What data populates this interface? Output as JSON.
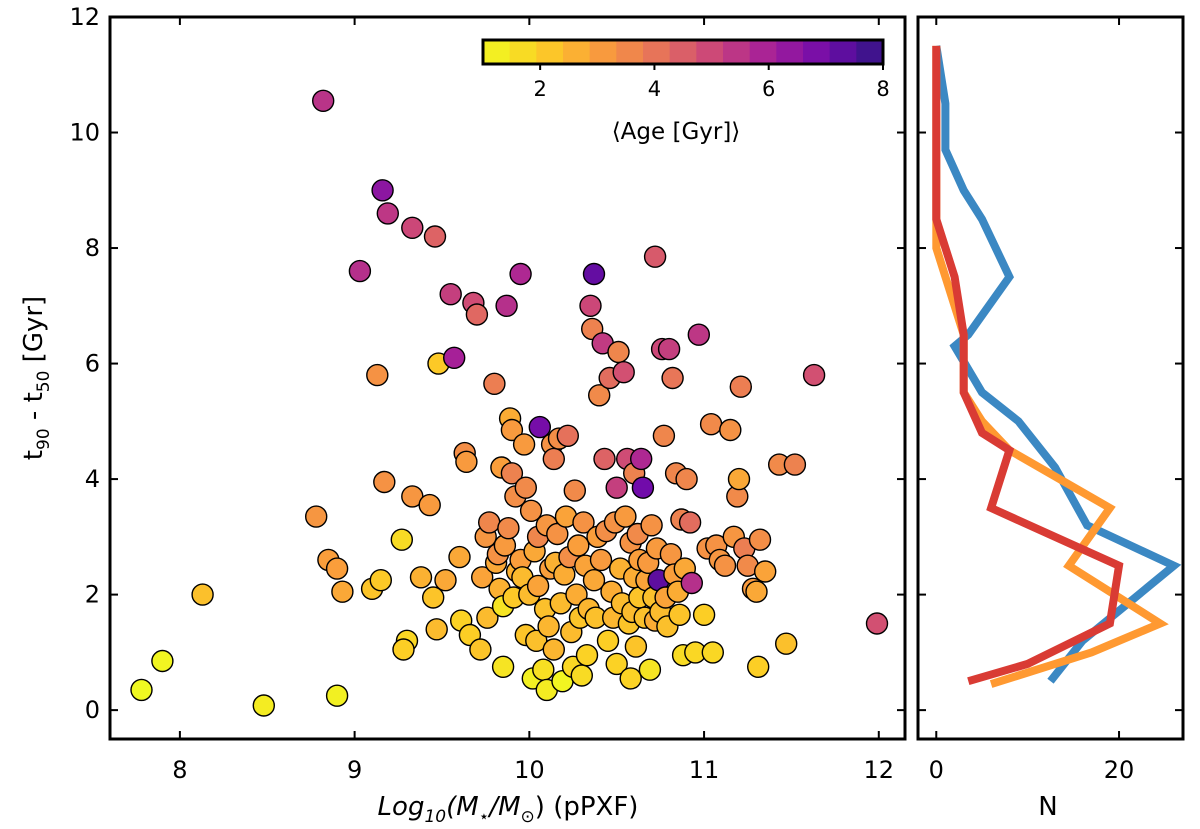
{
  "chart_data": [
    {
      "type": "scatter",
      "title": "",
      "xlabel": "Log10(M⋆/M⊙) (pPXF)",
      "xlabel_parts": {
        "prefix": "Log",
        "sub": "10",
        "mid": "(M",
        "star": "⋆",
        "slash": "/M",
        "sun": "⊙",
        "suffix": ") (pPXF)"
      },
      "ylabel": "t90 - t50 [Gyr]",
      "ylabel_parts": {
        "t1": "t",
        "s1": "90",
        "mid": " - t",
        "s2": "50",
        "unit": " [Gyr]"
      },
      "xlim": [
        7.6,
        12.15
      ],
      "ylim": [
        -0.5,
        12
      ],
      "xticks": [
        "8",
        "9",
        "10",
        "11",
        "12"
      ],
      "yticks": [
        "0",
        "2",
        "4",
        "6",
        "8",
        "10",
        "12"
      ],
      "colorbar": {
        "label": "⟨Age [Gyr]⟩",
        "range": [
          1,
          8
        ],
        "ticks": [
          "2",
          "4",
          "6",
          "8"
        ],
        "cmap": "plasma_r"
      },
      "points": [
        [
          7.78,
          0.35,
          1.0
        ],
        [
          7.9,
          0.85,
          1.1
        ],
        [
          8.13,
          2.0,
          2.3
        ],
        [
          8.48,
          0.08,
          1.3
        ],
        [
          8.82,
          10.55,
          5.5
        ],
        [
          8.78,
          3.35,
          3.2
        ],
        [
          8.85,
          2.6,
          3.0
        ],
        [
          8.9,
          2.45,
          3.0
        ],
        [
          8.9,
          0.25,
          1.2
        ],
        [
          8.93,
          2.05,
          2.8
        ],
        [
          9.03,
          7.6,
          5.6
        ],
        [
          9.1,
          2.1,
          2.2
        ],
        [
          9.15,
          2.25,
          2.1
        ],
        [
          9.13,
          5.8,
          3.3
        ],
        [
          9.16,
          9.0,
          6.5
        ],
        [
          9.17,
          3.95,
          3.3
        ],
        [
          9.19,
          8.6,
          5.4
        ],
        [
          9.27,
          2.95,
          1.7
        ],
        [
          9.3,
          1.2,
          1.8
        ],
        [
          9.28,
          1.05,
          2.0
        ],
        [
          9.33,
          8.35,
          5.0
        ],
        [
          9.33,
          3.7,
          3.2
        ],
        [
          9.38,
          2.3,
          2.6
        ],
        [
          9.43,
          3.55,
          3.1
        ],
        [
          9.46,
          8.2,
          4.4
        ],
        [
          9.45,
          1.95,
          2.2
        ],
        [
          9.47,
          1.4,
          2.4
        ],
        [
          9.48,
          6.0,
          2.1
        ],
        [
          9.52,
          2.25,
          2.8
        ],
        [
          9.55,
          7.2,
          5.2
        ],
        [
          9.57,
          6.1,
          6.0
        ],
        [
          9.6,
          2.65,
          2.8
        ],
        [
          9.61,
          1.55,
          1.9
        ],
        [
          9.63,
          4.45,
          3.4
        ],
        [
          9.64,
          4.3,
          3.1
        ],
        [
          9.66,
          1.3,
          2.0
        ],
        [
          9.68,
          7.05,
          4.9
        ],
        [
          9.7,
          6.85,
          4.3
        ],
        [
          9.72,
          1.05,
          2.2
        ],
        [
          9.73,
          2.3,
          2.9
        ],
        [
          9.75,
          3.0,
          3.2
        ],
        [
          9.76,
          1.6,
          2.4
        ],
        [
          9.77,
          3.25,
          3.6
        ],
        [
          9.8,
          5.65,
          3.8
        ],
        [
          9.81,
          2.55,
          2.8
        ],
        [
          9.82,
          2.7,
          3.3
        ],
        [
          9.83,
          2.1,
          2.6
        ],
        [
          9.84,
          4.2,
          3.0
        ],
        [
          9.85,
          0.75,
          1.5
        ],
        [
          9.85,
          1.8,
          1.5
        ],
        [
          9.86,
          2.85,
          3.1
        ],
        [
          9.87,
          7.0,
          5.6
        ],
        [
          9.88,
          3.15,
          3.5
        ],
        [
          9.89,
          5.05,
          2.7
        ],
        [
          9.9,
          4.85,
          3.1
        ],
        [
          9.9,
          4.1,
          3.7
        ],
        [
          9.91,
          1.95,
          2.1
        ],
        [
          9.92,
          3.7,
          3.4
        ],
        [
          9.93,
          2.4,
          2.6
        ],
        [
          9.95,
          7.55,
          5.8
        ],
        [
          9.95,
          2.6,
          3.0
        ],
        [
          9.96,
          2.3,
          2.4
        ],
        [
          9.97,
          4.6,
          3.1
        ],
        [
          9.98,
          3.85,
          3.5
        ],
        [
          9.98,
          1.3,
          2.2
        ],
        [
          10.0,
          2.0,
          2.4
        ],
        [
          10.01,
          3.45,
          3.3
        ],
        [
          10.02,
          0.55,
          1.2
        ],
        [
          10.03,
          2.75,
          2.8
        ],
        [
          10.04,
          1.2,
          2.3
        ],
        [
          10.05,
          3.0,
          3.6
        ],
        [
          10.05,
          2.15,
          2.9
        ],
        [
          10.06,
          4.9,
          6.9
        ],
        [
          10.08,
          0.7,
          1.6
        ],
        [
          10.09,
          1.75,
          2.3
        ],
        [
          10.1,
          3.2,
          3.2
        ],
        [
          10.1,
          0.35,
          1.3
        ],
        [
          10.11,
          1.45,
          2.5
        ],
        [
          10.12,
          2.45,
          3.0
        ],
        [
          10.13,
          4.6,
          3.3
        ],
        [
          10.14,
          4.35,
          3.8
        ],
        [
          10.14,
          1.05,
          2.5
        ],
        [
          10.15,
          2.55,
          2.6
        ],
        [
          10.16,
          3.05,
          3.3
        ],
        [
          10.17,
          4.7,
          3.4
        ],
        [
          10.18,
          1.85,
          2.4
        ],
        [
          10.19,
          0.5,
          1.1
        ],
        [
          10.2,
          2.35,
          2.7
        ],
        [
          10.21,
          3.35,
          2.9
        ],
        [
          10.22,
          4.75,
          4.1
        ],
        [
          10.23,
          2.65,
          3.4
        ],
        [
          10.24,
          1.35,
          2.4
        ],
        [
          10.25,
          0.75,
          1.8
        ],
        [
          10.26,
          3.8,
          3.5
        ],
        [
          10.27,
          2.0,
          2.7
        ],
        [
          10.28,
          2.85,
          3.0
        ],
        [
          10.29,
          1.6,
          2.2
        ],
        [
          10.3,
          0.6,
          1.7
        ],
        [
          10.31,
          3.25,
          3.3
        ],
        [
          10.32,
          2.5,
          2.9
        ],
        [
          10.33,
          0.95,
          1.9
        ],
        [
          10.34,
          1.75,
          2.5
        ],
        [
          10.35,
          7.0,
          5.0
        ],
        [
          10.36,
          6.6,
          3.7
        ],
        [
          10.37,
          2.25,
          2.8
        ],
        [
          10.37,
          7.55,
          7.2
        ],
        [
          10.38,
          1.6,
          2.3
        ],
        [
          10.39,
          3.0,
          3.0
        ],
        [
          10.4,
          5.45,
          3.5
        ],
        [
          10.41,
          2.6,
          3.1
        ],
        [
          10.42,
          6.35,
          5.3
        ],
        [
          10.43,
          4.35,
          4.4
        ],
        [
          10.44,
          3.1,
          3.4
        ],
        [
          10.45,
          1.2,
          2.0
        ],
        [
          10.46,
          5.75,
          4.2
        ],
        [
          10.47,
          2.05,
          2.7
        ],
        [
          10.48,
          1.6,
          2.5
        ],
        [
          10.49,
          3.25,
          3.3
        ],
        [
          10.5,
          3.85,
          5.2
        ],
        [
          10.5,
          0.8,
          1.9
        ],
        [
          10.51,
          6.2,
          3.6
        ],
        [
          10.52,
          2.45,
          2.6
        ],
        [
          10.53,
          1.85,
          2.4
        ],
        [
          10.54,
          5.85,
          4.8
        ],
        [
          10.55,
          3.35,
          3.1
        ],
        [
          10.56,
          4.35,
          4.9
        ],
        [
          10.57,
          1.5,
          2.2
        ],
        [
          10.58,
          2.9,
          3.3
        ],
        [
          10.58,
          0.55,
          1.9
        ],
        [
          10.59,
          1.7,
          2.4
        ],
        [
          10.6,
          4.1,
          3.7
        ],
        [
          10.6,
          2.3,
          2.7
        ],
        [
          10.61,
          1.1,
          2.2
        ],
        [
          10.62,
          3.05,
          3.5
        ],
        [
          10.63,
          2.6,
          3.0
        ],
        [
          10.63,
          1.95,
          2.2
        ],
        [
          10.64,
          4.35,
          5.8
        ],
        [
          10.65,
          3.85,
          7.0
        ],
        [
          10.66,
          1.6,
          2.3
        ],
        [
          10.67,
          2.25,
          2.9
        ],
        [
          10.68,
          2.55,
          3.1
        ],
        [
          10.69,
          0.7,
          1.5
        ],
        [
          10.7,
          3.2,
          3.3
        ],
        [
          10.71,
          1.95,
          2.3
        ],
        [
          10.72,
          7.85,
          4.6
        ],
        [
          10.72,
          1.55,
          2.7
        ],
        [
          10.73,
          2.8,
          3.1
        ],
        [
          10.74,
          2.25,
          7.3
        ],
        [
          10.75,
          1.7,
          2.4
        ],
        [
          10.76,
          6.25,
          5.0
        ],
        [
          10.77,
          4.75,
          3.6
        ],
        [
          10.78,
          1.95,
          2.9
        ],
        [
          10.79,
          1.45,
          2.3
        ],
        [
          10.8,
          6.25,
          5.2
        ],
        [
          10.81,
          2.7,
          3.2
        ],
        [
          10.82,
          5.75,
          4.0
        ],
        [
          10.83,
          2.35,
          3.0
        ],
        [
          10.84,
          4.1,
          3.6
        ],
        [
          10.85,
          2.05,
          2.7
        ],
        [
          10.86,
          1.65,
          2.2
        ],
        [
          10.87,
          3.3,
          3.7
        ],
        [
          10.88,
          0.95,
          1.7
        ],
        [
          10.89,
          2.45,
          2.8
        ],
        [
          10.9,
          4.0,
          3.6
        ],
        [
          10.92,
          3.25,
          4.2
        ],
        [
          10.93,
          2.2,
          5.6
        ],
        [
          10.95,
          1.0,
          1.8
        ],
        [
          10.97,
          6.5,
          5.4
        ],
        [
          11.0,
          1.65,
          2.0
        ],
        [
          11.02,
          2.8,
          3.3
        ],
        [
          11.04,
          4.95,
          3.5
        ],
        [
          11.05,
          1.0,
          1.8
        ],
        [
          11.07,
          2.85,
          3.3
        ],
        [
          11.09,
          2.6,
          3.2
        ],
        [
          11.12,
          2.5,
          3.3
        ],
        [
          11.15,
          4.85,
          3.3
        ],
        [
          11.17,
          3.0,
          3.2
        ],
        [
          11.19,
          3.7,
          3.5
        ],
        [
          11.2,
          4.0,
          2.8
        ],
        [
          11.21,
          5.6,
          3.8
        ],
        [
          11.23,
          2.8,
          3.8
        ],
        [
          11.25,
          2.5,
          3.5
        ],
        [
          11.28,
          2.1,
          3.1
        ],
        [
          11.3,
          2.05,
          2.8
        ],
        [
          11.31,
          0.75,
          2.0
        ],
        [
          11.32,
          2.95,
          3.4
        ],
        [
          11.35,
          2.4,
          2.9
        ],
        [
          11.43,
          4.25,
          3.5
        ],
        [
          11.47,
          1.15,
          2.3
        ],
        [
          11.52,
          4.25,
          3.7
        ],
        [
          11.63,
          5.8,
          4.8
        ],
        [
          11.99,
          1.5,
          4.8
        ]
      ]
    },
    {
      "type": "line",
      "xlabel": "N",
      "xlim": [
        -2,
        27
      ],
      "xticks": [
        "0",
        "20"
      ],
      "series": [
        {
          "name": "blue",
          "color": "#3b88c3",
          "points": [
            [
              12.5,
              0.5
            ],
            [
              16,
              1.2
            ],
            [
              26,
              2.5
            ],
            [
              16.5,
              3.2
            ],
            [
              13,
              4.2
            ],
            [
              9,
              5.0
            ],
            [
              5,
              5.5
            ],
            [
              2,
              6.3
            ],
            [
              3.5,
              6.5
            ],
            [
              8,
              7.5
            ],
            [
              5,
              8.5
            ],
            [
              3,
              9.0
            ],
            [
              1,
              9.7
            ],
            [
              1,
              10.5
            ],
            [
              0,
              11.5
            ]
          ]
        },
        {
          "name": "orange",
          "color": "#ff9931",
          "points": [
            [
              6,
              0.45
            ],
            [
              17,
              1.0
            ],
            [
              24.5,
              1.5
            ],
            [
              14.5,
              2.5
            ],
            [
              19,
              3.5
            ],
            [
              8,
              4.5
            ],
            [
              5,
              5.0
            ],
            [
              3,
              5.5
            ],
            [
              3,
              6.5
            ],
            [
              0,
              8.0
            ],
            [
              0,
              11.5
            ]
          ]
        },
        {
          "name": "red",
          "color": "#d93b34",
          "points": [
            [
              3.5,
              0.5
            ],
            [
              10,
              0.8
            ],
            [
              19,
              1.5
            ],
            [
              20,
              2.5
            ],
            [
              6,
              3.5
            ],
            [
              8,
              4.5
            ],
            [
              5,
              4.8
            ],
            [
              3,
              5.5
            ],
            [
              3,
              6.5
            ],
            [
              2,
              7.5
            ],
            [
              0,
              8.5
            ],
            [
              0,
              11.5
            ]
          ]
        }
      ]
    }
  ]
}
